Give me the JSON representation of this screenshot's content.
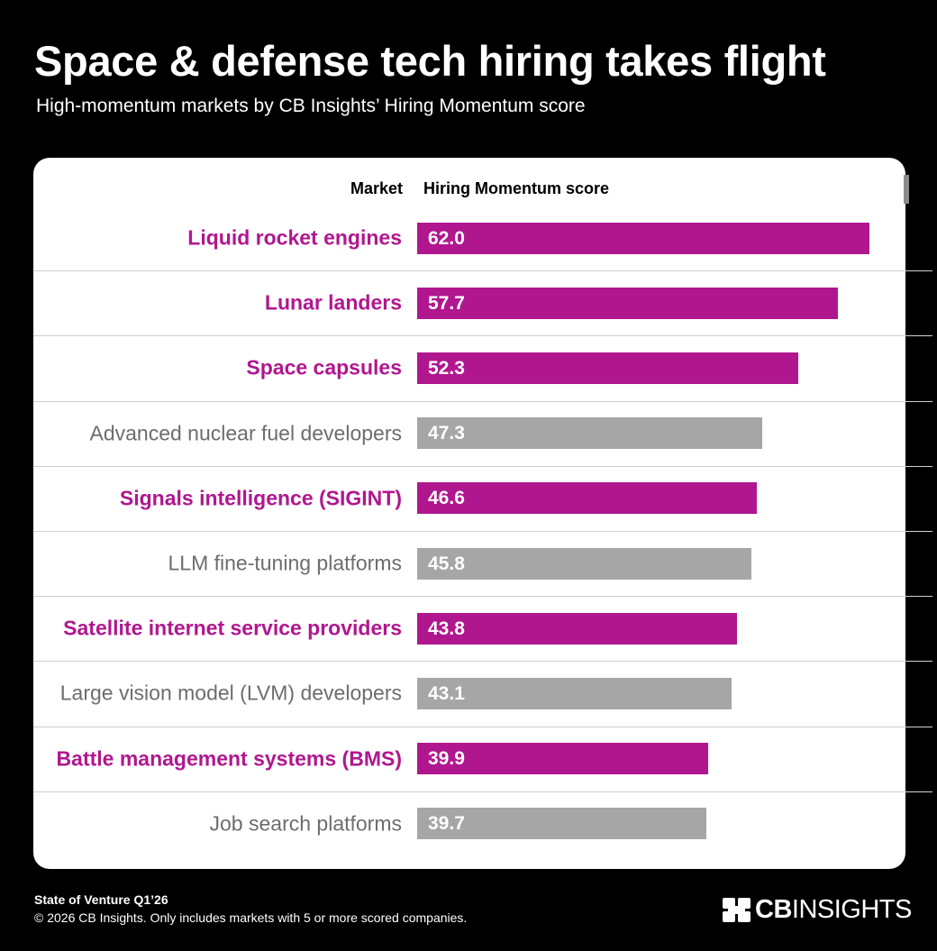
{
  "title": "Space & defense tech hiring takes flight",
  "subtitle": "High-momentum markets by CB Insights’ Hiring Momentum score",
  "colors": {
    "highlight": "#b0178f",
    "other": "#a6a6a6",
    "background": "#000000",
    "card": "#ffffff"
  },
  "chart_data": {
    "type": "bar",
    "orientation": "horizontal",
    "column_headers": {
      "market": "Market",
      "score": "Hiring Momentum score"
    },
    "categories": [
      "Liquid rocket engines",
      "Lunar landers",
      "Space capsules",
      "Advanced nuclear fuel developers",
      "Signals intelligence (SIGINT)",
      "LLM fine-tuning platforms",
      "Satellite internet service providers",
      "Large vision model (LVM) developers",
      "Battle management systems (BMS)",
      "Job search platforms"
    ],
    "values": [
      62.0,
      57.7,
      52.3,
      47.3,
      46.6,
      45.8,
      43.8,
      43.1,
      39.9,
      39.7
    ],
    "value_labels": [
      "62.0",
      "57.7",
      "52.3",
      "47.3",
      "46.6",
      "45.8",
      "43.8",
      "43.1",
      "39.9",
      "39.7"
    ],
    "highlighted": [
      true,
      true,
      true,
      false,
      true,
      false,
      true,
      false,
      true,
      false
    ],
    "xlim": [
      0,
      62.0
    ],
    "grid": false,
    "legend": "none"
  },
  "footer": {
    "source": "State of Venture Q1’26",
    "note": "© 2026 CB Insights. Only includes markets with 5 or more scored companies.",
    "logo_text_bold": "CB",
    "logo_text_regular": "INSIGHTS",
    "logo_icon": "cb-insights-logo-icon"
  }
}
